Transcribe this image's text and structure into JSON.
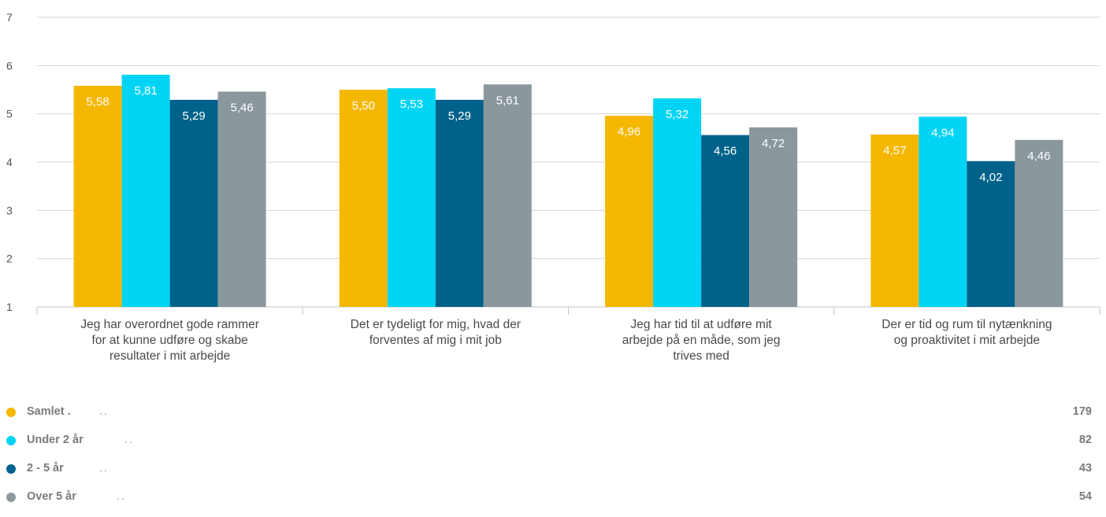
{
  "chart_data": {
    "type": "bar",
    "categories": [
      "Jeg har overordnet gode rammer for at kunne udføre og skabe resultater i mit arbejde",
      "Det er tydeligt for mig, hvad der forventes af mig i mit job",
      "Jeg har tid til at udføre mit arbejde på en måde, som jeg trives med",
      "Der er tid og rum til nytænkning og proaktivitet i mit arbejde"
    ],
    "category_lines": [
      [
        "Jeg har overordnet gode rammer",
        "for at kunne udføre og skabe",
        "resultater i mit arbejde"
      ],
      [
        "Det er tydeligt for mig, hvad der",
        "forventes af mig i mit job"
      ],
      [
        "Jeg har tid til at udføre mit",
        "arbejde på en måde, som jeg",
        "trives med"
      ],
      [
        "Der er tid og rum til nytænkning",
        "og proaktivitet i mit arbejde"
      ]
    ],
    "series": [
      {
        "name": "Samlet .",
        "values": [
          5.58,
          5.5,
          4.96,
          4.57
        ],
        "labels": [
          "5,58",
          "5,50",
          "4,96",
          "4,57"
        ],
        "color": "#f5b700",
        "count": "179",
        "dots": ".."
      },
      {
        "name": "Under 2 år",
        "values": [
          5.81,
          5.53,
          5.32,
          4.94
        ],
        "labels": [
          "5,81",
          "5,53",
          "5,32",
          "4,94"
        ],
        "color": "#00d4f5",
        "count": "82",
        "dots": ".."
      },
      {
        "name": "2 - 5 år",
        "values": [
          5.29,
          5.29,
          4.56,
          4.02
        ],
        "labels": [
          "5,29",
          "5,29",
          "4,56",
          "4,02"
        ],
        "color": "#00628a",
        "count": "43",
        "dots": ".."
      },
      {
        "name": "Over 5 år",
        "values": [
          5.46,
          5.61,
          4.72,
          4.46
        ],
        "labels": [
          "5,46",
          "5,61",
          "4,72",
          "4,46"
        ],
        "color": "#8a989e",
        "count": "54",
        "dots": ".."
      }
    ],
    "yticks": [
      "1",
      "2",
      "3",
      "4",
      "5",
      "6",
      "7"
    ],
    "ylim": [
      1,
      7
    ],
    "grid": true,
    "legend_position": "bottom"
  }
}
